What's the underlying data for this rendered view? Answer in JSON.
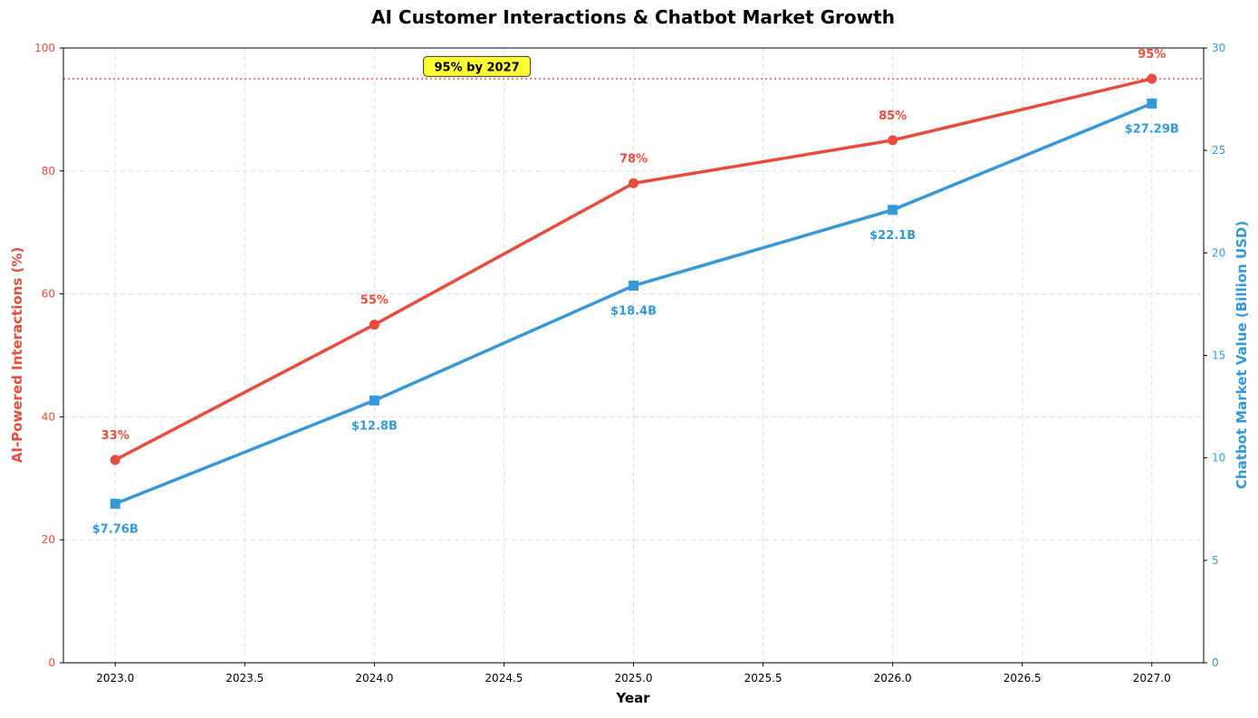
{
  "chart_data": {
    "type": "line",
    "title": "AI Customer Interactions & Chatbot Market Growth",
    "xlabel": "Year",
    "ylabel_left": "AI-Powered Interactions (%)",
    "ylabel_right": "Chatbot Market Value (Billion USD)",
    "xlim": [
      2022.8,
      2027.2
    ],
    "ylim_left": [
      0,
      100
    ],
    "ylim_right": [
      0,
      30
    ],
    "xticks": [
      "2023.0",
      "2023.5",
      "2024.0",
      "2024.5",
      "2025.0",
      "2025.5",
      "2026.0",
      "2026.5",
      "2027.0"
    ],
    "yticks_left": [
      "0",
      "20",
      "40",
      "60",
      "80",
      "100"
    ],
    "yticks_right": [
      "0",
      "5",
      "10",
      "15",
      "20",
      "25",
      "30"
    ],
    "grid": true,
    "x": [
      2023,
      2024,
      2025,
      2026,
      2027
    ],
    "series": [
      {
        "axis": "left",
        "color": "#e74c3c",
        "marker": "circle",
        "values": [
          33,
          55,
          78,
          85,
          95
        ],
        "labels": [
          "33%",
          "55%",
          "78%",
          "85%",
          "95%"
        ]
      },
      {
        "axis": "right",
        "color": "#3498db",
        "marker": "square",
        "values": [
          7.76,
          12.8,
          18.4,
          22.1,
          27.29
        ],
        "labels": [
          "$7.76B",
          "$12.8B",
          "$18.4B",
          "$22.1B",
          "$27.29B"
        ]
      }
    ],
    "reference_line": {
      "axis": "left",
      "value": 95,
      "color": "#ff0000",
      "style": "dotted"
    },
    "annotation": {
      "text": "95% by 2027",
      "x": 2024.2,
      "y": 97,
      "background": "#ffff33"
    }
  }
}
